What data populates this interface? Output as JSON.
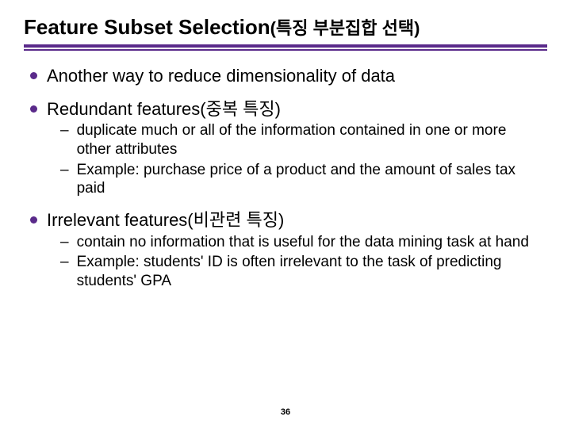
{
  "colors": {
    "rule": "#5a2a8a",
    "bullet": "#5a2a8a",
    "text": "#000000",
    "background": "#ffffff"
  },
  "title": {
    "main": "Feature Subset Selection",
    "sub": "(특징 부분집합 선택)"
  },
  "bullets": [
    {
      "text": "Another way to reduce dimensionality of data",
      "sub": []
    },
    {
      "text": "Redundant features(중복 특징)",
      "sub": [
        "duplicate much or all of the information contained in one or more other attributes",
        "Example: purchase price of a product and the amount of sales tax paid"
      ]
    },
    {
      "text": "Irrelevant features(비관련 특징)",
      "sub": [
        "contain no information that is useful for the data mining task at hand",
        "Example: students' ID is often irrelevant to the task of predicting students' GPA"
      ]
    }
  ],
  "pageNumber": "36"
}
